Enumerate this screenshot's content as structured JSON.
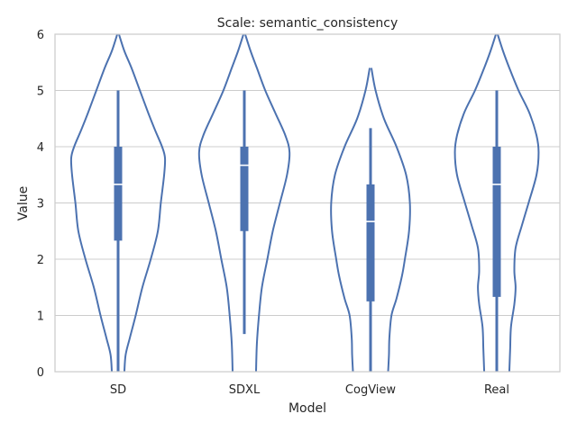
{
  "chart_data": {
    "type": "violin",
    "title": "Scale: semantic_consistency",
    "xlabel": "Model",
    "ylabel": "Value",
    "categories": [
      "SD",
      "SDXL",
      "CogView",
      "Real"
    ],
    "ylim": [
      0,
      6
    ],
    "yticks": [
      0,
      1,
      2,
      3,
      4,
      5,
      6
    ],
    "grid": true,
    "color": "#4c72b0",
    "series": [
      {
        "category": "SD",
        "whisker": [
          0,
          5
        ],
        "q1": 2.33,
        "median": 3.33,
        "q3": 4.0,
        "density": [
          [
            0,
            0.15
          ],
          [
            0.3,
            0.18
          ],
          [
            0.6,
            0.28
          ],
          [
            1.0,
            0.42
          ],
          [
            1.5,
            0.58
          ],
          [
            2.0,
            0.78
          ],
          [
            2.5,
            0.95
          ],
          [
            3.0,
            1.02
          ],
          [
            3.5,
            1.1
          ],
          [
            3.8,
            1.12
          ],
          [
            4.0,
            1.05
          ],
          [
            4.3,
            0.88
          ],
          [
            4.6,
            0.72
          ],
          [
            5.0,
            0.52
          ],
          [
            5.4,
            0.32
          ],
          [
            5.7,
            0.15
          ],
          [
            6.0,
            0.02
          ]
        ]
      },
      {
        "category": "SDXL",
        "whisker": [
          0.67,
          5
        ],
        "q1": 2.5,
        "median": 3.67,
        "q3": 4.0,
        "density": [
          [
            0,
            0.28
          ],
          [
            0.5,
            0.3
          ],
          [
            1.0,
            0.35
          ],
          [
            1.5,
            0.42
          ],
          [
            2.0,
            0.55
          ],
          [
            2.5,
            0.68
          ],
          [
            3.0,
            0.85
          ],
          [
            3.5,
            1.02
          ],
          [
            3.9,
            1.08
          ],
          [
            4.2,
            0.98
          ],
          [
            4.6,
            0.74
          ],
          [
            5.0,
            0.5
          ],
          [
            5.4,
            0.3
          ],
          [
            5.7,
            0.15
          ],
          [
            6.0,
            0.02
          ]
        ]
      },
      {
        "category": "CogView",
        "whisker": [
          0,
          4.33
        ],
        "q1": 1.25,
        "median": 2.67,
        "q3": 3.33,
        "density": [
          [
            0,
            0.42
          ],
          [
            0.3,
            0.44
          ],
          [
            0.6,
            0.45
          ],
          [
            1.0,
            0.5
          ],
          [
            1.3,
            0.62
          ],
          [
            1.7,
            0.75
          ],
          [
            2.0,
            0.82
          ],
          [
            2.5,
            0.92
          ],
          [
            3.0,
            0.94
          ],
          [
            3.5,
            0.85
          ],
          [
            4.0,
            0.62
          ],
          [
            4.5,
            0.32
          ],
          [
            5.0,
            0.12
          ],
          [
            5.4,
            0.02
          ]
        ]
      },
      {
        "category": "Real",
        "whisker": [
          0,
          5
        ],
        "q1": 1.33,
        "median": 3.33,
        "q3": 4.0,
        "density": [
          [
            0,
            0.3
          ],
          [
            0.4,
            0.32
          ],
          [
            0.8,
            0.34
          ],
          [
            1.2,
            0.42
          ],
          [
            1.5,
            0.45
          ],
          [
            1.8,
            0.42
          ],
          [
            2.2,
            0.45
          ],
          [
            2.6,
            0.6
          ],
          [
            3.0,
            0.76
          ],
          [
            3.5,
            0.95
          ],
          [
            3.9,
            1.0
          ],
          [
            4.2,
            0.95
          ],
          [
            4.6,
            0.78
          ],
          [
            5.0,
            0.52
          ],
          [
            5.4,
            0.3
          ],
          [
            5.7,
            0.15
          ],
          [
            6.0,
            0.02
          ]
        ]
      }
    ]
  }
}
